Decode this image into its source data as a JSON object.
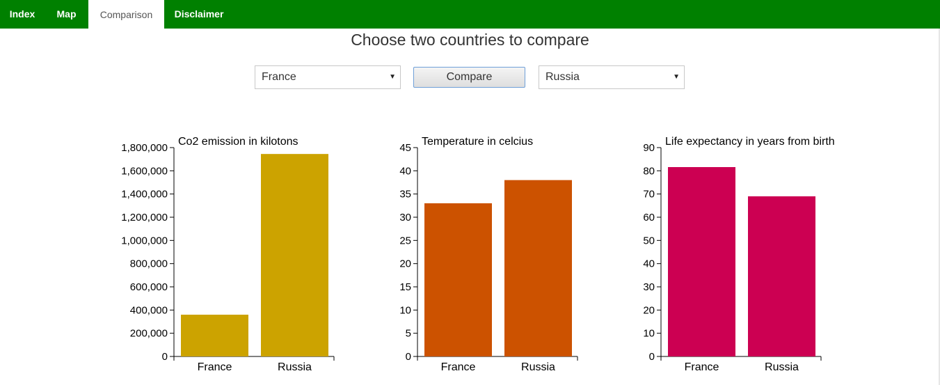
{
  "nav": {
    "items": [
      {
        "label": "Index",
        "active": false
      },
      {
        "label": "Map",
        "active": false
      },
      {
        "label": "Comparison",
        "active": true
      },
      {
        "label": "Disclaimer",
        "active": false
      }
    ],
    "color": "#008000"
  },
  "page": {
    "title": "Choose two countries to compare"
  },
  "controls": {
    "country_left": "France",
    "compare_label": "Compare",
    "country_right": "Russia"
  },
  "chart_data": [
    {
      "type": "bar",
      "title": "Co2 emission in kilotons",
      "categories": [
        "France",
        "Russia"
      ],
      "values": [
        360000,
        1745000
      ],
      "ylim": [
        0,
        1800000
      ],
      "yticks": [
        0,
        200000,
        400000,
        600000,
        800000,
        1000000,
        1200000,
        1400000,
        1600000,
        1800000
      ],
      "ytick_labels": [
        "0",
        "200,000",
        "400,000",
        "600,000",
        "800,000",
        "1,000,000",
        "1,200,000",
        "1,400,000",
        "1,600,000",
        "1,800,000"
      ],
      "color": "#cca300",
      "xlabel": "",
      "ylabel": "",
      "grid": false
    },
    {
      "type": "bar",
      "title": "Temperature in celcius",
      "categories": [
        "France",
        "Russia"
      ],
      "values": [
        33,
        38
      ],
      "ylim": [
        0,
        45
      ],
      "yticks": [
        0,
        5,
        10,
        15,
        20,
        25,
        30,
        35,
        40,
        45
      ],
      "ytick_labels": [
        "0",
        "5",
        "10",
        "15",
        "20",
        "25",
        "30",
        "35",
        "40",
        "45"
      ],
      "color": "#cc5200",
      "xlabel": "",
      "ylabel": "",
      "grid": false
    },
    {
      "type": "bar",
      "title": "Life expectancy in years from birth",
      "categories": [
        "France",
        "Russia"
      ],
      "values": [
        81.6,
        69
      ],
      "ylim": [
        0,
        90
      ],
      "yticks": [
        0,
        10,
        20,
        30,
        40,
        50,
        60,
        70,
        80,
        90
      ],
      "ytick_labels": [
        "0",
        "10",
        "20",
        "30",
        "40",
        "50",
        "60",
        "70",
        "80",
        "90"
      ],
      "color": "#cc0052",
      "xlabel": "",
      "ylabel": "",
      "grid": false
    }
  ]
}
